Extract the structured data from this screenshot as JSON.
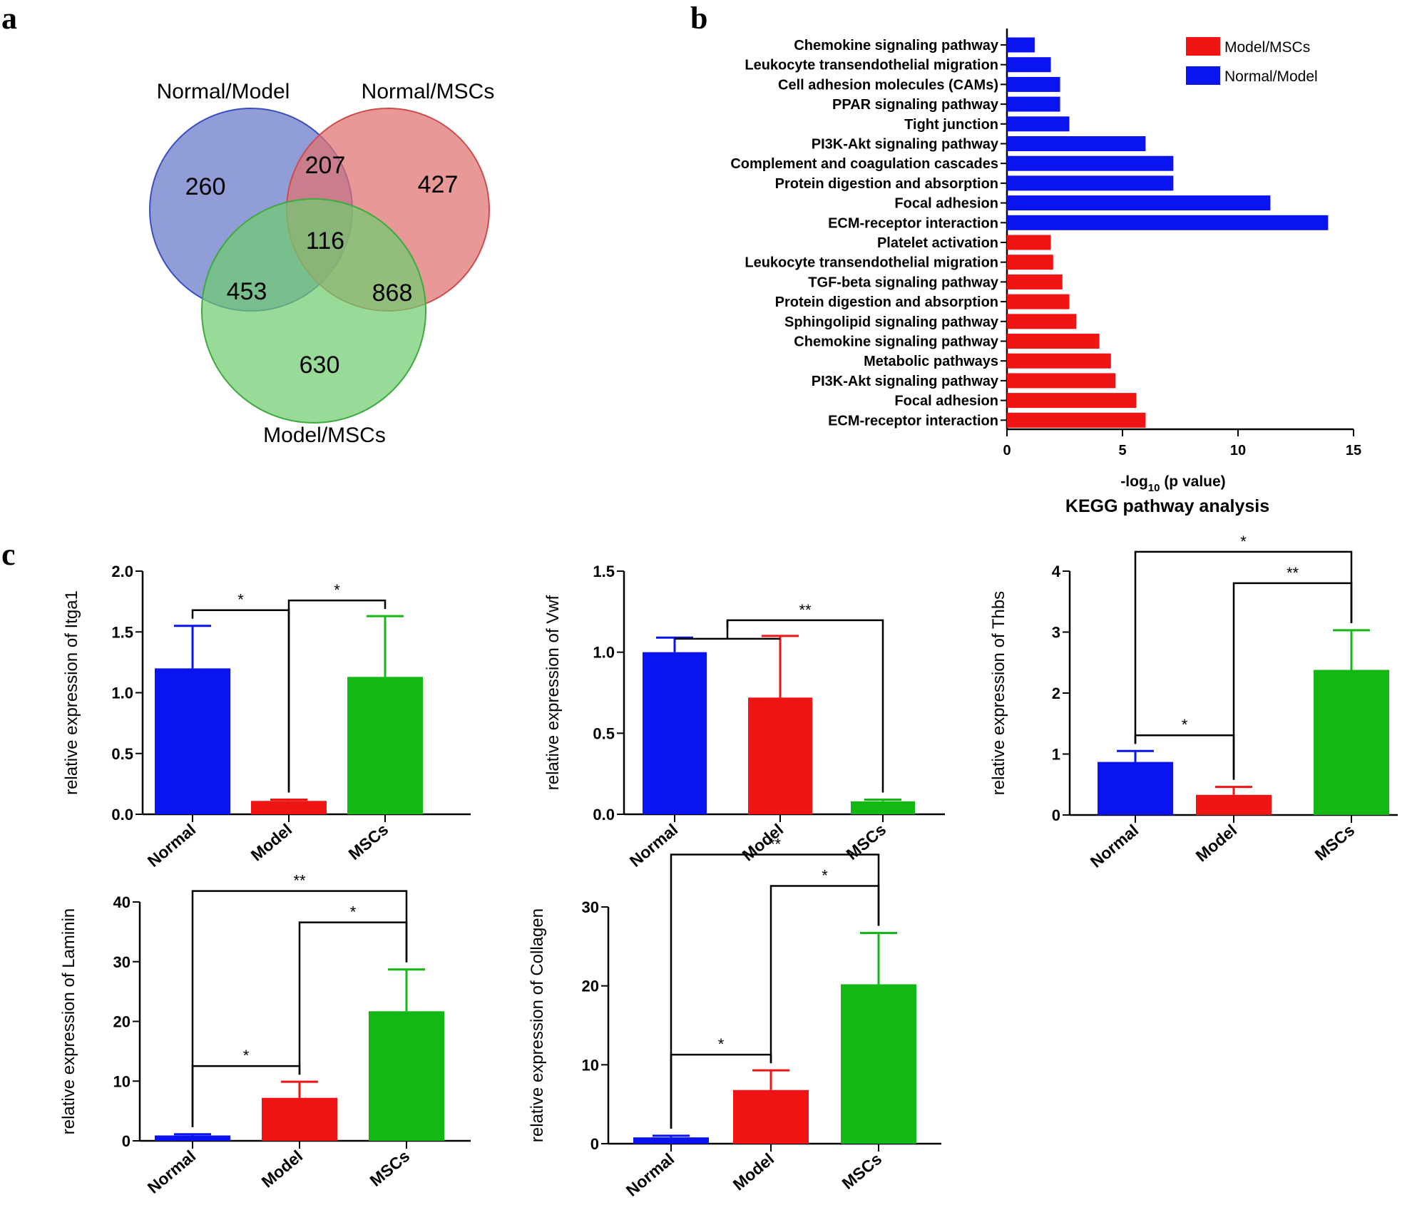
{
  "panel_labels": {
    "a": "a",
    "b": "b",
    "c": "c"
  },
  "colors": {
    "blue": "#0a14f0",
    "red": "#f01414",
    "green": "#14b814",
    "venn_blue": "#6677c8",
    "venn_red": "#e07070",
    "venn_green": "#70cc70"
  },
  "venn": {
    "sets": [
      "Normal/Model",
      "Normal/MSCs",
      "Model/MSCs"
    ],
    "regions": {
      "only_a": "260",
      "ab": "207",
      "only_b": "427",
      "abc": "116",
      "ac": "453",
      "bc": "868",
      "only_c": "630"
    }
  },
  "chart_data": [
    {
      "type": "bar",
      "orientation": "horizontal",
      "xlabel_prefix": "-log",
      "xlabel_sub": "10",
      "xlabel_suffix": " (p value)",
      "title": "KEGG pathway analysis",
      "xlim": [
        0,
        15
      ],
      "xticks": [
        0,
        5,
        10,
        15
      ],
      "legend": [
        "Model/MSCs",
        "Normal/Model"
      ],
      "legend_position": "top-right",
      "categories": [
        "Chemokine signaling pathway",
        "Leukocyte transendothelial migration",
        "Cell adhesion molecules (CAMs)",
        "PPAR signaling pathway",
        "Tight junction",
        "PI3K-Akt signaling pathway",
        "Complement and coagulation cascades",
        "Protein digestion and absorption",
        "Focal adhesion",
        "ECM-receptor interaction",
        "Platelet activation",
        "Leukocyte transendothelial migration",
        "TGF-beta signaling pathway",
        "Protein digestion and absorption",
        "Sphingolipid signaling pathway",
        "Chemokine signaling pathway",
        "Metabolic pathways",
        "PI3K-Akt signaling pathway",
        "Focal adhesion",
        "ECM-receptor interaction"
      ],
      "values": [
        1.2,
        1.9,
        2.3,
        2.3,
        2.7,
        6.0,
        7.2,
        7.2,
        11.4,
        13.9,
        1.9,
        2.0,
        2.4,
        2.7,
        3.0,
        4.0,
        4.5,
        4.7,
        5.6,
        6.0
      ],
      "series_index": [
        1,
        1,
        1,
        1,
        1,
        1,
        1,
        1,
        1,
        1,
        0,
        0,
        0,
        0,
        0,
        0,
        0,
        0,
        0,
        0
      ]
    },
    {
      "type": "bar",
      "ylabel": "relative expression of Itga1",
      "categories": [
        "Normal",
        "Model",
        "MSCs"
      ],
      "values": [
        1.2,
        0.11,
        1.13
      ],
      "errors": [
        0.35,
        0.01,
        0.5
      ],
      "ylim": [
        0,
        2.0
      ],
      "yticks": [
        "0.0",
        "0.5",
        "1.0",
        "1.5",
        "2.0"
      ],
      "brackets": [
        {
          "from": 0,
          "to": 1,
          "label": "*",
          "level": 0
        },
        {
          "from": 1,
          "to": 2,
          "label": "*",
          "level": 0
        }
      ]
    },
    {
      "type": "bar",
      "ylabel": "relative expression of Vwf",
      "categories": [
        "Normal",
        "Model",
        "MSCs"
      ],
      "values": [
        1.0,
        0.72,
        0.08
      ],
      "errors": [
        0.09,
        0.38,
        0.01
      ],
      "ylim": [
        0,
        1.5
      ],
      "yticks": [
        "0.0",
        "0.5",
        "1.0",
        "1.5"
      ],
      "brackets": [
        {
          "from": 0.5,
          "to": 2,
          "label": "**",
          "level": 0,
          "group_bar": [
            0,
            1
          ]
        }
      ]
    },
    {
      "type": "bar",
      "ylabel": "relative expression of Thbs",
      "categories": [
        "Normal",
        "Model",
        "MSCs"
      ],
      "values": [
        0.87,
        0.33,
        2.38
      ],
      "errors": [
        0.18,
        0.13,
        0.65
      ],
      "ylim": [
        0,
        4
      ],
      "yticks": [
        "0",
        "1",
        "2",
        "3",
        "4"
      ],
      "brackets": [
        {
          "from": 0,
          "to": 1,
          "label": "*",
          "level": 0
        },
        {
          "from": 1,
          "to": 2,
          "label": "**",
          "level": 1
        },
        {
          "from": 0,
          "to": 2,
          "label": "*",
          "level": 2
        }
      ]
    },
    {
      "type": "bar",
      "ylabel": "relative expression of Laminin",
      "categories": [
        "Normal",
        "Model",
        "MSCs"
      ],
      "values": [
        0.9,
        7.2,
        21.7
      ],
      "errors": [
        0.2,
        2.7,
        7.0
      ],
      "ylim": [
        0,
        40
      ],
      "yticks": [
        "0",
        "10",
        "20",
        "30",
        "40"
      ],
      "brackets": [
        {
          "from": 0,
          "to": 1,
          "label": "*",
          "level": 0
        },
        {
          "from": 1,
          "to": 2,
          "label": "*",
          "level": 1
        },
        {
          "from": 0,
          "to": 2,
          "label": "**",
          "level": 2
        }
      ]
    },
    {
      "type": "bar",
      "ylabel": "relative expression of Collagen",
      "categories": [
        "Normal",
        "Model",
        "MSCs"
      ],
      "values": [
        0.8,
        6.8,
        20.2
      ],
      "errors": [
        0.2,
        2.5,
        6.5
      ],
      "ylim": [
        0,
        30
      ],
      "yticks": [
        "0",
        "10",
        "20",
        "30"
      ],
      "brackets": [
        {
          "from": 0,
          "to": 1,
          "label": "*",
          "level": 0
        },
        {
          "from": 1,
          "to": 2,
          "label": "*",
          "level": 1
        },
        {
          "from": 0,
          "to": 2,
          "label": "**",
          "level": 2
        }
      ]
    }
  ]
}
